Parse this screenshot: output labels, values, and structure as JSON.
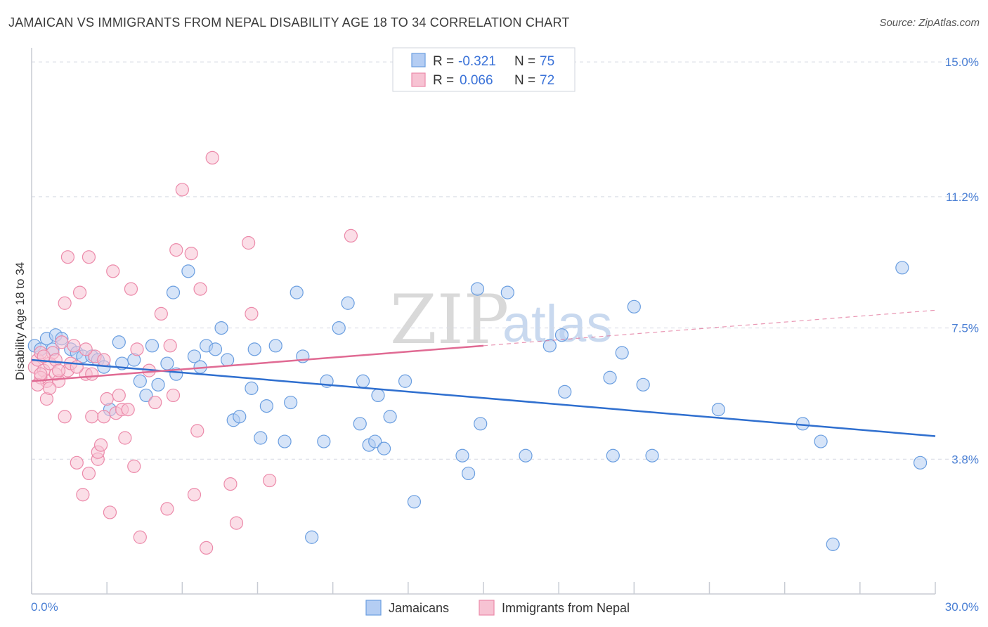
{
  "title": "JAMAICAN VS IMMIGRANTS FROM NEPAL DISABILITY AGE 18 TO 34 CORRELATION CHART",
  "source": "Source: ZipAtlas.com",
  "watermark": {
    "part1": "ZIP",
    "part2": "atlas"
  },
  "colors": {
    "blue": "#6a9ee0",
    "blue_fill": "#b4cdf3",
    "pink": "#ec8aaa",
    "pink_fill": "#f7c3d3",
    "blue_line": "#2f6fcf",
    "pink_line": "#e06a93",
    "grid": "#d5d9e2",
    "tick_text": "#4a7fd4"
  },
  "legend": {
    "rows": [
      {
        "r_label": "R =",
        "r_value": "-0.321",
        "n_label": "N =",
        "n_value": "75"
      },
      {
        "r_label": "R =",
        "r_value": "0.066",
        "n_label": "N =",
        "n_value": "72"
      }
    ]
  },
  "bottom_legend": [
    "Jamaicans",
    "Immigrants from Nepal"
  ],
  "chart_data": {
    "type": "scatter",
    "title": "JAMAICAN VS IMMIGRANTS FROM NEPAL DISABILITY AGE 18 TO 34 CORRELATION CHART",
    "xlabel": "",
    "ylabel": "Disability Age 18 to 34",
    "xlim": [
      0,
      30
    ],
    "ylim": [
      0,
      15.4
    ],
    "x_tick_labels": [
      "0.0%",
      "30.0%"
    ],
    "y_ticks": [
      3.8,
      7.5,
      11.2,
      15.0
    ],
    "y_tick_labels": [
      "3.8%",
      "7.5%",
      "11.2%",
      "15.0%"
    ],
    "series": [
      {
        "name": "Jamaicans",
        "trend": {
          "x": [
            0,
            30
          ],
          "y": [
            6.6,
            4.45
          ],
          "dashed_from": null
        },
        "points": [
          [
            0.1,
            7.0
          ],
          [
            0.3,
            6.9
          ],
          [
            0.5,
            7.2
          ],
          [
            0.7,
            6.9
          ],
          [
            0.8,
            7.3
          ],
          [
            1.0,
            7.2
          ],
          [
            1.3,
            6.9
          ],
          [
            1.5,
            6.8
          ],
          [
            1.7,
            6.7
          ],
          [
            2.0,
            6.7
          ],
          [
            2.2,
            6.6
          ],
          [
            2.4,
            6.4
          ],
          [
            2.6,
            5.2
          ],
          [
            2.9,
            7.1
          ],
          [
            3.0,
            6.5
          ],
          [
            3.4,
            6.6
          ],
          [
            3.6,
            6.0
          ],
          [
            3.8,
            5.6
          ],
          [
            4.0,
            7.0
          ],
          [
            4.2,
            5.9
          ],
          [
            4.5,
            6.5
          ],
          [
            4.7,
            8.5
          ],
          [
            4.8,
            6.2
          ],
          [
            5.2,
            9.1
          ],
          [
            5.4,
            6.7
          ],
          [
            5.6,
            6.4
          ],
          [
            5.8,
            7.0
          ],
          [
            6.1,
            6.9
          ],
          [
            6.3,
            7.5
          ],
          [
            6.5,
            6.6
          ],
          [
            6.7,
            4.9
          ],
          [
            6.9,
            5.0
          ],
          [
            7.3,
            5.8
          ],
          [
            7.4,
            6.9
          ],
          [
            7.6,
            4.4
          ],
          [
            7.8,
            5.3
          ],
          [
            8.1,
            7.0
          ],
          [
            8.4,
            4.3
          ],
          [
            8.6,
            5.4
          ],
          [
            8.8,
            8.5
          ],
          [
            9.0,
            6.7
          ],
          [
            9.3,
            1.6
          ],
          [
            9.7,
            4.3
          ],
          [
            9.8,
            6.0
          ],
          [
            10.2,
            7.5
          ],
          [
            10.5,
            8.2
          ],
          [
            10.9,
            4.8
          ],
          [
            11.0,
            6.0
          ],
          [
            11.2,
            4.2
          ],
          [
            11.4,
            4.3
          ],
          [
            11.5,
            5.6
          ],
          [
            11.7,
            4.1
          ],
          [
            11.9,
            5.0
          ],
          [
            12.4,
            6.0
          ],
          [
            12.7,
            2.6
          ],
          [
            14.3,
            3.9
          ],
          [
            14.5,
            3.4
          ],
          [
            14.8,
            8.6
          ],
          [
            14.9,
            4.8
          ],
          [
            15.8,
            8.5
          ],
          [
            16.4,
            3.9
          ],
          [
            17.2,
            7.0
          ],
          [
            17.6,
            7.3
          ],
          [
            17.7,
            5.7
          ],
          [
            19.2,
            6.1
          ],
          [
            19.3,
            3.9
          ],
          [
            19.6,
            6.8
          ],
          [
            20.0,
            8.1
          ],
          [
            20.3,
            5.9
          ],
          [
            20.6,
            3.9
          ],
          [
            22.8,
            5.2
          ],
          [
            25.6,
            4.8
          ],
          [
            26.2,
            4.3
          ],
          [
            26.6,
            1.4
          ],
          [
            28.9,
            9.2
          ],
          [
            29.5,
            3.7
          ]
        ]
      },
      {
        "name": "Immigrants from Nepal",
        "trend": {
          "x": [
            0,
            30
          ],
          "y": [
            6.0,
            8.0
          ],
          "dashed_from": 15.0
        },
        "points": [
          [
            0.1,
            6.4
          ],
          [
            0.2,
            6.6
          ],
          [
            0.3,
            6.8
          ],
          [
            0.4,
            6.3
          ],
          [
            0.5,
            6.0
          ],
          [
            0.6,
            6.5
          ],
          [
            0.7,
            6.8
          ],
          [
            0.8,
            6.2
          ],
          [
            0.9,
            6.0
          ],
          [
            1.0,
            7.1
          ],
          [
            1.1,
            5.0
          ],
          [
            1.1,
            8.2
          ],
          [
            1.2,
            6.3
          ],
          [
            1.3,
            6.5
          ],
          [
            1.4,
            7.0
          ],
          [
            1.5,
            3.7
          ],
          [
            1.6,
            8.5
          ],
          [
            1.7,
            2.8
          ],
          [
            1.8,
            6.2
          ],
          [
            1.9,
            3.4
          ],
          [
            2.0,
            5.0
          ],
          [
            2.1,
            6.7
          ],
          [
            2.2,
            3.8
          ],
          [
            2.2,
            4.0
          ],
          [
            2.3,
            4.2
          ],
          [
            2.4,
            5.0
          ],
          [
            2.5,
            5.5
          ],
          [
            2.6,
            2.3
          ],
          [
            2.7,
            9.1
          ],
          [
            2.8,
            5.1
          ],
          [
            2.9,
            5.6
          ],
          [
            3.0,
            5.2
          ],
          [
            3.1,
            4.4
          ],
          [
            3.3,
            8.6
          ],
          [
            3.4,
            3.6
          ],
          [
            3.5,
            6.9
          ],
          [
            3.6,
            1.6
          ],
          [
            3.9,
            6.3
          ],
          [
            4.1,
            5.4
          ],
          [
            4.3,
            7.9
          ],
          [
            4.5,
            2.4
          ],
          [
            4.6,
            7.0
          ],
          [
            4.7,
            5.6
          ],
          [
            4.8,
            9.7
          ],
          [
            5.0,
            11.4
          ],
          [
            5.3,
            9.6
          ],
          [
            5.4,
            2.8
          ],
          [
            5.5,
            4.6
          ],
          [
            5.6,
            8.6
          ],
          [
            5.8,
            1.3
          ],
          [
            6.0,
            12.3
          ],
          [
            6.6,
            3.1
          ],
          [
            6.8,
            2.0
          ],
          [
            7.2,
            9.9
          ],
          [
            7.3,
            7.9
          ],
          [
            7.9,
            3.2
          ],
          [
            10.6,
            10.1
          ],
          [
            1.2,
            9.5
          ],
          [
            1.9,
            9.5
          ],
          [
            0.4,
            6.7
          ],
          [
            0.3,
            6.1
          ],
          [
            0.8,
            6.6
          ],
          [
            1.5,
            6.4
          ],
          [
            2.0,
            6.2
          ],
          [
            0.2,
            5.9
          ],
          [
            0.5,
            5.5
          ],
          [
            3.2,
            5.2
          ],
          [
            0.6,
            5.8
          ],
          [
            1.8,
            6.9
          ],
          [
            2.4,
            6.6
          ],
          [
            0.9,
            6.3
          ],
          [
            0.3,
            6.2
          ]
        ]
      }
    ]
  }
}
